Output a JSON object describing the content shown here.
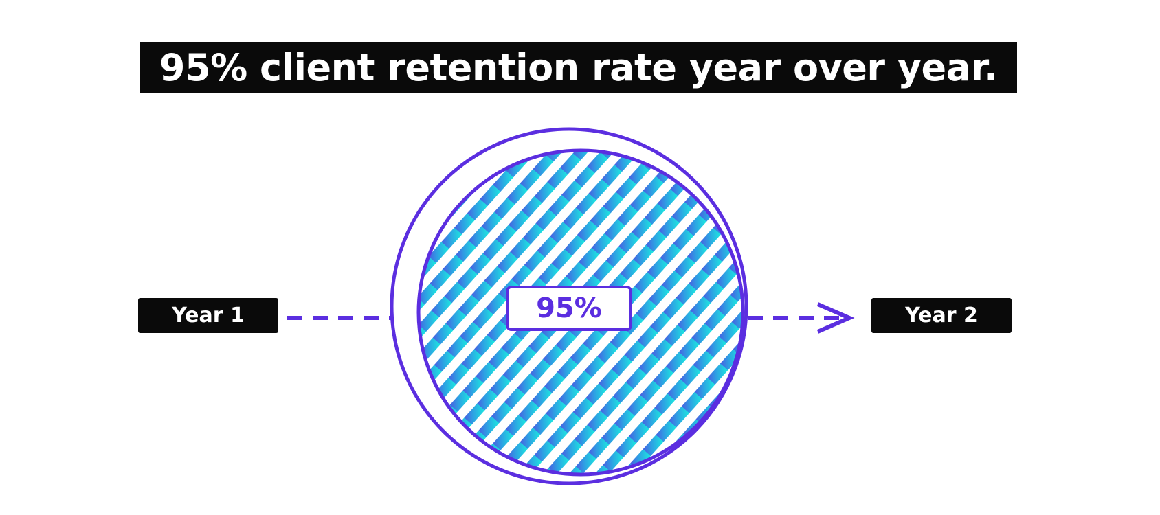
{
  "headline": "95% client retention rate year over year.",
  "from_label": "Year 1",
  "to_label": "Year 2",
  "retention_percent_label": "95%",
  "retention_value": 95,
  "colors": {
    "accent": "#5B2EE0",
    "gradient_start": "#5B2EE0",
    "gradient_end": "#1CE8E0",
    "tag_background": "#0A0A0A"
  }
}
